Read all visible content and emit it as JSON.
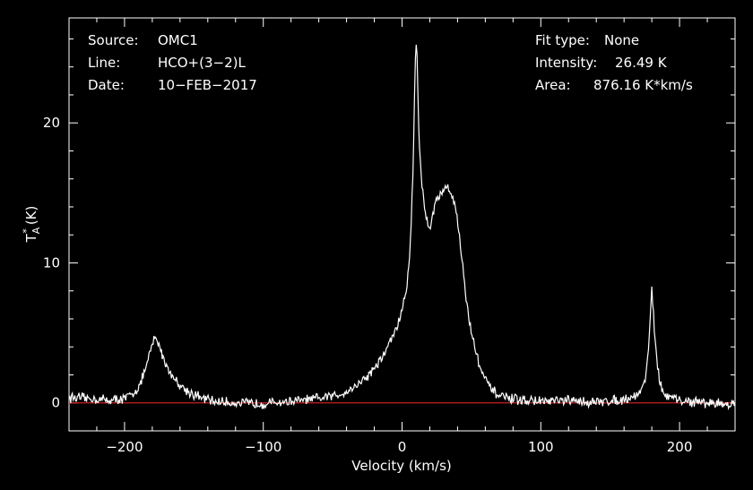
{
  "chart_data": {
    "type": "line",
    "title": "",
    "xlabel": "Velocity (km/s)",
    "ylabel_main": "T",
    "ylabel_sup": "*",
    "ylabel_sub": "A",
    "ylabel_units": "(K)",
    "xlim": [
      -240,
      240
    ],
    "ylim": [
      -2,
      27.5
    ],
    "xticks": [
      -200,
      -100,
      0,
      100,
      200
    ],
    "xtick_labels": [
      "−200",
      "−100",
      "0",
      "100",
      "200"
    ],
    "yticks": [
      0,
      10,
      20
    ],
    "ytick_labels": [
      "0",
      "10",
      "20"
    ],
    "baseline": 0,
    "baseline_color": "#cc2020",
    "line_color": "#ffffff",
    "background": "#000000",
    "grid": false,
    "series": [
      {
        "x": [
          -240,
          -225,
          -210,
          -200,
          -193,
          -188,
          -184,
          -181,
          -179,
          -177,
          -175,
          -172,
          -168,
          -163,
          -158,
          -152,
          -145,
          -135,
          -120,
          -100,
          -80,
          -60,
          -45,
          -35,
          -25,
          -15,
          -8,
          -3,
          0,
          3,
          5,
          6.5,
          8,
          9,
          10,
          11,
          12,
          14,
          16,
          18,
          20,
          22,
          25,
          28,
          30,
          32,
          34,
          36,
          38,
          40,
          43,
          46,
          50,
          55,
          60,
          65,
          70,
          80,
          100,
          120,
          140,
          160,
          170,
          174,
          176,
          178,
          179,
          180,
          181,
          182,
          184,
          186,
          190,
          200,
          220,
          240
        ],
        "y": [
          0.4,
          0.3,
          0.2,
          0.3,
          0.7,
          1.5,
          2.7,
          3.8,
          4.5,
          4.6,
          4.1,
          3.2,
          2.3,
          1.6,
          1.1,
          0.7,
          0.35,
          0.1,
          0.0,
          -0.05,
          0.1,
          0.3,
          0.6,
          1.1,
          1.9,
          3.1,
          4.5,
          5.6,
          6.6,
          8.0,
          9.8,
          12.5,
          17.0,
          22.0,
          26.2,
          24.5,
          19.5,
          16.0,
          14.0,
          13.0,
          12.5,
          13.5,
          14.5,
          15.0,
          15.3,
          15.4,
          15.2,
          14.8,
          14.3,
          13.0,
          10.5,
          7.5,
          5.0,
          3.0,
          1.6,
          0.9,
          0.5,
          0.25,
          0.1,
          0.15,
          0.05,
          0.25,
          0.6,
          1.2,
          2.2,
          4.5,
          6.5,
          8.2,
          6.8,
          4.8,
          2.6,
          1.3,
          0.5,
          0.15,
          0.0,
          -0.1
        ]
      }
    ]
  },
  "annotations": {
    "source_label": "Source:",
    "source_value": "OMC1",
    "line_label": "Line:",
    "line_value": "HCO+(3−2)L",
    "date_label": "Date:",
    "date_value": "10−FEB−2017",
    "fit_label": "Fit type:",
    "fit_value": "None",
    "intensity_label": "Intensity:",
    "intensity_value": "26.49 K",
    "area_label": "Area:",
    "area_value": "876.16 K*km/s"
  }
}
